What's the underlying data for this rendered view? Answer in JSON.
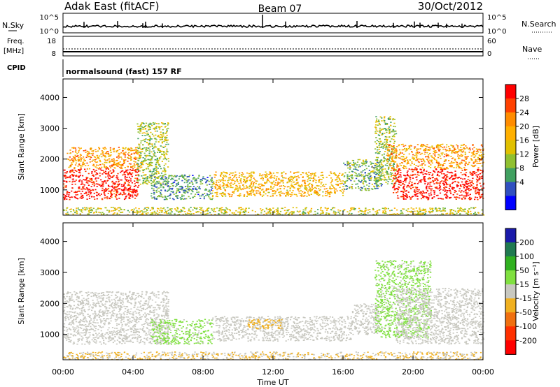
{
  "header": {
    "title": "Adak East (fitACF)",
    "beam": "Beam 07",
    "date": "30/Oct/2012"
  },
  "noise_panel": {
    "left_label": "N.Sky",
    "left_ticks": [
      "10^5",
      "10^0"
    ],
    "right_label": "N.Search",
    "right_ticks": [
      "10^5",
      "10^0"
    ]
  },
  "freq_panel": {
    "left_label_1": "Freq.",
    "left_label_2": "[MHz]",
    "left_ticks": [
      "18",
      "8"
    ],
    "right_label": "Nave",
    "right_ticks": [
      "60",
      "0"
    ]
  },
  "cpid": {
    "label": "CPID",
    "mode": "normalsound (fast) 157 RF"
  },
  "power_colorbar": {
    "label": "Power [dB]",
    "ticks": [
      "28",
      "24",
      "20",
      "16",
      "12",
      "8",
      "4"
    ],
    "colors": [
      "#ff0000",
      "#ff4000",
      "#ff8c00",
      "#ffb000",
      "#e0c000",
      "#90c030",
      "#40a060",
      "#3050c0",
      "#0000ff"
    ]
  },
  "velocity_colorbar": {
    "label": "Velocity [m s⁻¹]",
    "ticks": [
      "200",
      "100",
      "50",
      "15",
      "-15",
      "-50",
      "-100",
      "-200"
    ],
    "colors": [
      "#1a1aaa",
      "#207a50",
      "#30b020",
      "#80e040",
      "#c8c8c0",
      "#f0b020",
      "#f07010",
      "#ff3000",
      "#ff0000"
    ]
  },
  "chart_data": [
    {
      "type": "heatmap",
      "name": "Power",
      "xlabel": "Time UT",
      "ylabel": "Slant Range [km]",
      "xlim": [
        0,
        24
      ],
      "ylim": [
        180,
        4600
      ],
      "xticks": [
        "00:00",
        "04:00",
        "08:00",
        "12:00",
        "16:00",
        "20:00",
        "00:00"
      ],
      "yticks": [
        1000,
        2000,
        3000,
        4000
      ],
      "colorbar": {
        "label": "Power [dB]",
        "range": [
          0,
          30
        ],
        "ticks": [
          4,
          8,
          12,
          16,
          20,
          24,
          28
        ]
      },
      "regions": [
        {
          "t0": 0.0,
          "t1": 4.3,
          "r0": 700,
          "r1": 1700,
          "value": 28
        },
        {
          "t0": 0.2,
          "t1": 4.5,
          "r0": 1700,
          "r1": 2400,
          "value": 20
        },
        {
          "t0": 4.2,
          "t1": 6.0,
          "r0": 1200,
          "r1": 3200,
          "value": 12
        },
        {
          "t0": 5.0,
          "t1": 8.5,
          "r0": 700,
          "r1": 1500,
          "value": 8
        },
        {
          "t0": 8.5,
          "t1": 16.0,
          "r0": 800,
          "r1": 1600,
          "value": 18
        },
        {
          "t0": 16.0,
          "t1": 18.2,
          "r0": 1000,
          "r1": 2000,
          "value": 10
        },
        {
          "t0": 17.8,
          "t1": 19.0,
          "r0": 1200,
          "r1": 3400,
          "value": 12
        },
        {
          "t0": 18.8,
          "t1": 24.0,
          "r0": 700,
          "r1": 1700,
          "value": 28
        },
        {
          "t0": 18.5,
          "t1": 24.0,
          "r0": 1700,
          "r1": 2500,
          "value": 20
        },
        {
          "t0": 0.0,
          "t1": 24.0,
          "r0": 200,
          "r1": 450,
          "value": 14
        }
      ]
    },
    {
      "type": "heatmap",
      "name": "Velocity",
      "xlabel": "Time UT",
      "ylabel": "Slant Range [km]",
      "xlim": [
        0,
        24
      ],
      "ylim": [
        180,
        4600
      ],
      "xticks": [
        "00:00",
        "04:00",
        "08:00",
        "12:00",
        "16:00",
        "20:00",
        "00:00"
      ],
      "yticks": [
        1000,
        2000,
        3000,
        4000
      ],
      "colorbar": {
        "label": "Velocity [m s⁻¹]",
        "range": [
          -250,
          250
        ],
        "ticks": [
          200,
          100,
          50,
          15,
          -15,
          -50,
          -100,
          -200
        ]
      },
      "regions": [
        {
          "t0": 0.0,
          "t1": 6.0,
          "r0": 700,
          "r1": 2400,
          "value": 0
        },
        {
          "t0": 5.0,
          "t1": 8.5,
          "r0": 700,
          "r1": 1500,
          "value": 40
        },
        {
          "t0": 8.5,
          "t1": 16.5,
          "r0": 800,
          "r1": 1600,
          "value": 0
        },
        {
          "t0": 10.5,
          "t1": 12.5,
          "r0": 1200,
          "r1": 1500,
          "value": -60
        },
        {
          "t0": 16.5,
          "t1": 18.0,
          "r0": 1000,
          "r1": 2000,
          "value": 0
        },
        {
          "t0": 17.8,
          "t1": 21.0,
          "r0": 900,
          "r1": 3400,
          "value": 40
        },
        {
          "t0": 19.0,
          "t1": 24.0,
          "r0": 700,
          "r1": 2500,
          "value": 0
        },
        {
          "t0": 0.0,
          "t1": 24.0,
          "r0": 200,
          "r1": 450,
          "value": -30
        }
      ]
    }
  ]
}
